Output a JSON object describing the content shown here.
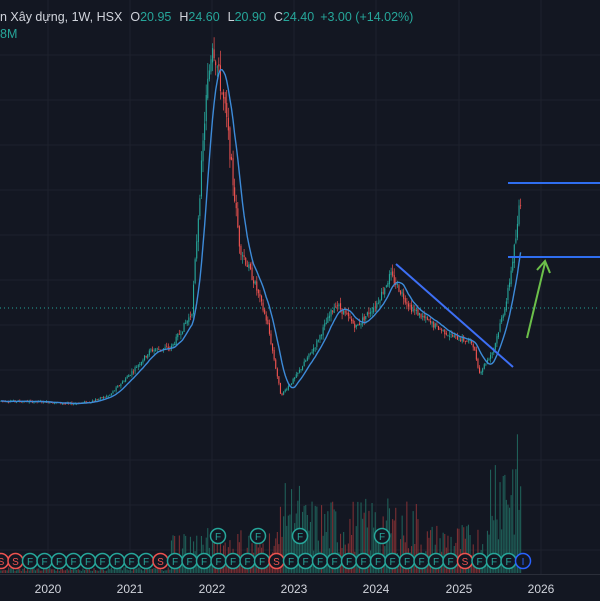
{
  "legend": {
    "symbol": "n Xây dựng, 1W, HSX",
    "open_label": "O",
    "open": "20.95",
    "high_label": "H",
    "high": "24.60",
    "low_label": "L",
    "low": "20.90",
    "close_label": "C",
    "close": "24.40",
    "change": "+3.00 (+14.02%)",
    "volume": "8M"
  },
  "xaxis": {
    "ticks": [
      "2020",
      "2021",
      "2022",
      "2023",
      "2024",
      "2025",
      "2026"
    ]
  },
  "events": {
    "markers": [
      "S",
      "S",
      "F",
      "F",
      "F",
      "F",
      "F",
      "F",
      "F",
      "F",
      "F",
      "S",
      "F",
      "F",
      "F",
      "F",
      "F",
      "F",
      "F",
      "S",
      "F",
      "F",
      "F",
      "F",
      "F",
      "F",
      "F",
      "F",
      "F",
      "F",
      "F",
      "F",
      "S",
      "F",
      "F",
      "F",
      "I"
    ],
    "raised": [
      "F",
      "F",
      "F",
      "F"
    ]
  },
  "colors": {
    "background": "#131722",
    "up": "#26a69a",
    "down": "#ef5350",
    "ma": "#3d8bd9",
    "trendline": "#3d6ff5",
    "resistance": "#2f6ef0",
    "arrow": "#6cc04a",
    "price_line": "#26a69a"
  },
  "chart_data": {
    "type": "candlestick",
    "interval": "1W",
    "exchange": "HSX",
    "price_points": [
      [
        "2019-07",
        3.6
      ],
      [
        "2019-10",
        3.55
      ],
      [
        "2020-01",
        3.5
      ],
      [
        "2020-04",
        3.3
      ],
      [
        "2020-07",
        3.5
      ],
      [
        "2020-10",
        4.2
      ],
      [
        "2021-01",
        6.5
      ],
      [
        "2021-04",
        9.0
      ],
      [
        "2021-07",
        9.3
      ],
      [
        "2021-10",
        13.0
      ],
      [
        "2021-12",
        35.0
      ],
      [
        "2022-01",
        42.0
      ],
      [
        "2022-03",
        34.0
      ],
      [
        "2022-05",
        20.0
      ],
      [
        "2022-07",
        16.5
      ],
      [
        "2022-09",
        12.0
      ],
      [
        "2022-11",
        4.2
      ],
      [
        "2023-01",
        6.0
      ],
      [
        "2023-04",
        9.5
      ],
      [
        "2023-07",
        14.0
      ],
      [
        "2023-10",
        11.5
      ],
      [
        "2024-01",
        14.0
      ],
      [
        "2024-03",
        17.0
      ],
      [
        "2024-06",
        13.5
      ],
      [
        "2024-09",
        11.8
      ],
      [
        "2024-12",
        10.5
      ],
      [
        "2025-03",
        9.8
      ],
      [
        "2025-04",
        6.6
      ],
      [
        "2025-06",
        9.0
      ],
      [
        "2025-08",
        14.5
      ],
      [
        "2025-10",
        24.4
      ]
    ],
    "moving_average": true,
    "volume_shown": true,
    "last_close": 24.4
  }
}
